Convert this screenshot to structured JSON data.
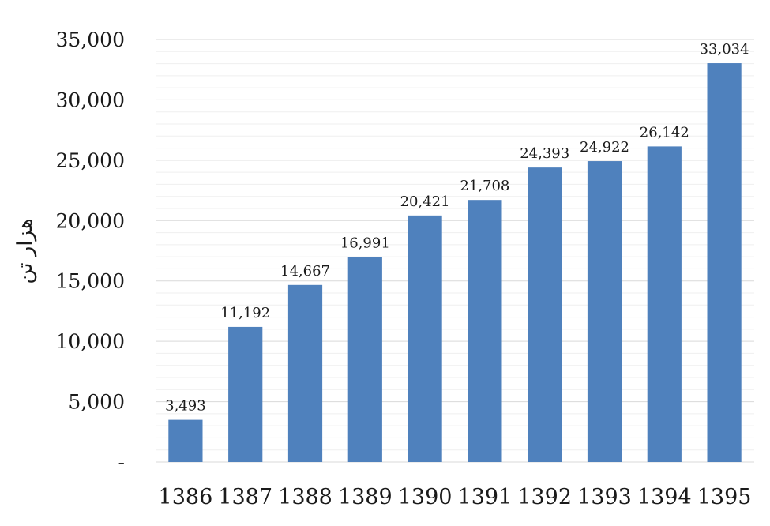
{
  "chart_data": {
    "type": "bar",
    "title": "",
    "xlabel": "",
    "ylabel": "هزار تن",
    "categories": [
      "1386",
      "1387",
      "1388",
      "1389",
      "1390",
      "1391",
      "1392",
      "1393",
      "1394",
      "1395"
    ],
    "values": [
      3493,
      11192,
      14667,
      16991,
      20421,
      21708,
      24393,
      24922,
      26142,
      33034
    ],
    "value_labels": [
      "3,493",
      "11,192",
      "14,667",
      "16,991",
      "20,421",
      "21,708",
      "24,393",
      "24,922",
      "26,142",
      "33,034"
    ],
    "ylim": [
      0,
      35000
    ],
    "yticks": [
      0,
      5000,
      10000,
      15000,
      20000,
      25000,
      30000,
      35000
    ],
    "ytick_labels": [
      "-",
      "5,000",
      "10,000",
      "15,000",
      "20,000",
      "25,000",
      "30,000",
      "35,000"
    ],
    "grid": true,
    "legend": "none",
    "colors": {
      "bar": "#4f81bd",
      "major_grid": "#d9d9d9",
      "minor_grid": "#efefef"
    }
  }
}
